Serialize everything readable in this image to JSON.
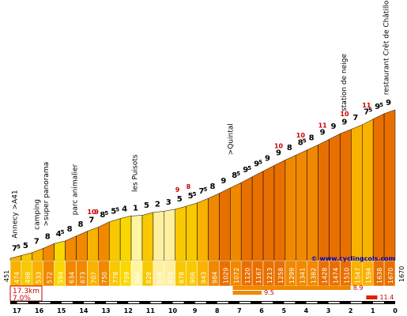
{
  "chart_data": {
    "type": "area",
    "title": "",
    "xlabel": "",
    "ylabel": "",
    "x_ticks": [
      "17",
      "16",
      "15",
      "14",
      "13",
      "12",
      "11",
      "10",
      "9",
      "8",
      "7",
      "6",
      "5",
      "4",
      "3",
      "2",
      "1",
      "0"
    ],
    "elevations": [
      451,
      474,
      498,
      533,
      572,
      594,
      634,
      673,
      707,
      750,
      778,
      799,
      804,
      828,
      838,
      854,
      878,
      906,
      943,
      984,
      1029,
      1072,
      1120,
      1167,
      1213,
      1258,
      1299,
      1341,
      1382,
      1428,
      1474,
      1510,
      1547,
      1594,
      1638,
      1670
    ],
    "segments": [
      {
        "grad": "7",
        "sup": "5",
        "color": "#f8b200"
      },
      {
        "grad": "5",
        "sup": "",
        "color": "#f8c800"
      },
      {
        "grad": "7",
        "sup": "",
        "color": "#f8b200"
      },
      {
        "grad": "8",
        "sup": "",
        "color": "#f08800"
      },
      {
        "grad": "4",
        "sup": "5",
        "color": "#f8d800"
      },
      {
        "grad": "8",
        "sup": "",
        "color": "#f08800"
      },
      {
        "grad": "8",
        "sup": "",
        "color": "#f08800"
      },
      {
        "grad": "7",
        "sup": "",
        "color": "#f8b200"
      },
      {
        "grad": "8",
        "sup": "5",
        "color": "#f08800"
      },
      {
        "grad": "5",
        "sup": "5",
        "color": "#f8c800"
      },
      {
        "grad": "4",
        "sup": "",
        "color": "#f8d800"
      },
      {
        "grad": "1",
        "sup": "",
        "color": "#fff5a0"
      },
      {
        "grad": "5",
        "sup": "",
        "color": "#f8c800"
      },
      {
        "grad": "2",
        "sup": "",
        "color": "#fff0a0"
      },
      {
        "grad": "3",
        "sup": "",
        "color": "#fff0a0"
      },
      {
        "grad": "5",
        "sup": "",
        "color": "#f8c800"
      },
      {
        "grad": "5",
        "sup": "5",
        "color": "#f8c800"
      },
      {
        "grad": "7",
        "sup": "5",
        "color": "#f8b200"
      },
      {
        "grad": "8",
        "sup": "",
        "color": "#f08800"
      },
      {
        "grad": "9",
        "sup": "",
        "color": "#e87000"
      },
      {
        "grad": "8",
        "sup": "5",
        "color": "#f08800"
      },
      {
        "grad": "9",
        "sup": "5",
        "color": "#e87000"
      },
      {
        "grad": "9",
        "sup": "5",
        "color": "#e87000"
      },
      {
        "grad": "9",
        "sup": "",
        "color": "#e87000"
      },
      {
        "grad": "9",
        "sup": "",
        "color": "#e87000"
      },
      {
        "grad": "8",
        "sup": "",
        "color": "#f08800"
      },
      {
        "grad": "8",
        "sup": "5",
        "color": "#f08800"
      },
      {
        "grad": "8",
        "sup": "",
        "color": "#f08800"
      },
      {
        "grad": "9",
        "sup": "",
        "color": "#e87000"
      },
      {
        "grad": "9",
        "sup": "",
        "color": "#e87000"
      },
      {
        "grad": "9",
        "sup": "",
        "color": "#e87000"
      },
      {
        "grad": "7",
        "sup": "",
        "color": "#f8b200"
      },
      {
        "grad": "7",
        "sup": "5",
        "color": "#f8b200"
      },
      {
        "grad": "9",
        "sup": "5",
        "color": "#e87000"
      },
      {
        "grad": "9",
        "sup": "",
        "color": "#e87000"
      },
      {
        "grad": "6",
        "sup": "5",
        "color": "#f8c800"
      }
    ],
    "max_gradients": [
      {
        "after_segment": 7,
        "value": "10"
      },
      {
        "after_segment": 7,
        "value": "9"
      },
      {
        "after_segment": 15,
        "value": "9"
      },
      {
        "after_segment": 16,
        "value": "8"
      },
      {
        "after_segment": 24,
        "value": "10"
      },
      {
        "after_segment": 26,
        "value": "10"
      },
      {
        "after_segment": 28,
        "value": "11"
      },
      {
        "after_segment": 30,
        "value": "10"
      },
      {
        "after_segment": 32,
        "value": "11"
      }
    ],
    "landmarks": [
      {
        "km": 17.0,
        "text": "Annecy >A41"
      },
      {
        "km": 16.0,
        "text": "camping"
      },
      {
        "km": 15.6,
        "text": ">super panorama"
      },
      {
        "km": 14.3,
        "text": "parc animalier"
      },
      {
        "km": 11.6,
        "text": "les Puisots"
      },
      {
        "km": 7.3,
        "text": ">Quintal"
      },
      {
        "km": 2.2,
        "text": "station de neige"
      },
      {
        "km": 0.3,
        "text": "restaurant Crêt de Châtillon"
      }
    ],
    "start_elevation": "451",
    "end_elevation": "1670",
    "summary": {
      "distance": "17.3km",
      "average": "7.0%"
    },
    "steep_sections": [
      {
        "start_km": 7.0,
        "end_km": 2.0,
        "value": "8.9"
      },
      {
        "start_km": 7.0,
        "end_km": 6.0,
        "value": "9.5"
      },
      {
        "start_km": 1.0,
        "end_km": 0.8,
        "value": "11.4"
      }
    ],
    "site": "© www.cyclingcols.com"
  }
}
